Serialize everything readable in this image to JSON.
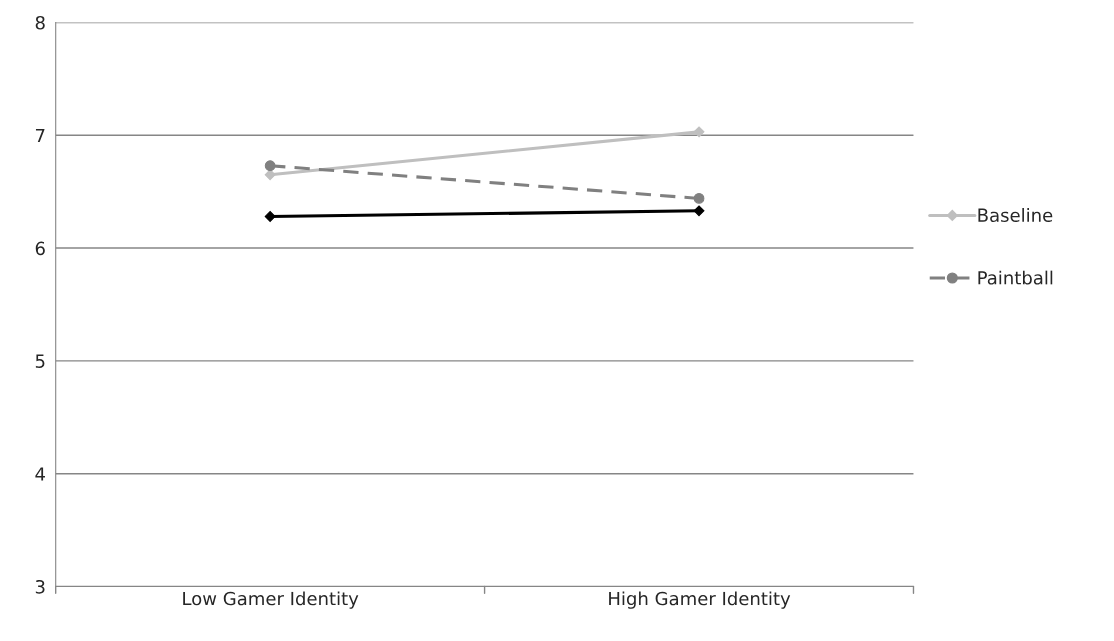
{
  "chart_data": {
    "type": "line",
    "categories": [
      "Low Gamer Identity",
      "High Gamer Identity"
    ],
    "series": [
      {
        "name": "Baseline",
        "color": "#bfbfbf",
        "values": [
          6.65,
          7.03
        ],
        "marker": "diamond",
        "line_style": "solid"
      },
      {
        "name": "Paintball",
        "color": "#808080",
        "values": [
          6.73,
          6.44
        ],
        "marker": "circle",
        "line_style": "dashed"
      },
      {
        "color": "#000000",
        "values": [
          6.28,
          6.33
        ],
        "marker": "diamond",
        "line_style": "solid"
      }
    ],
    "ylim": [
      3,
      8
    ],
    "yticks": [
      3,
      4,
      5,
      6,
      7,
      8
    ],
    "grid": "y",
    "legend": "right"
  }
}
